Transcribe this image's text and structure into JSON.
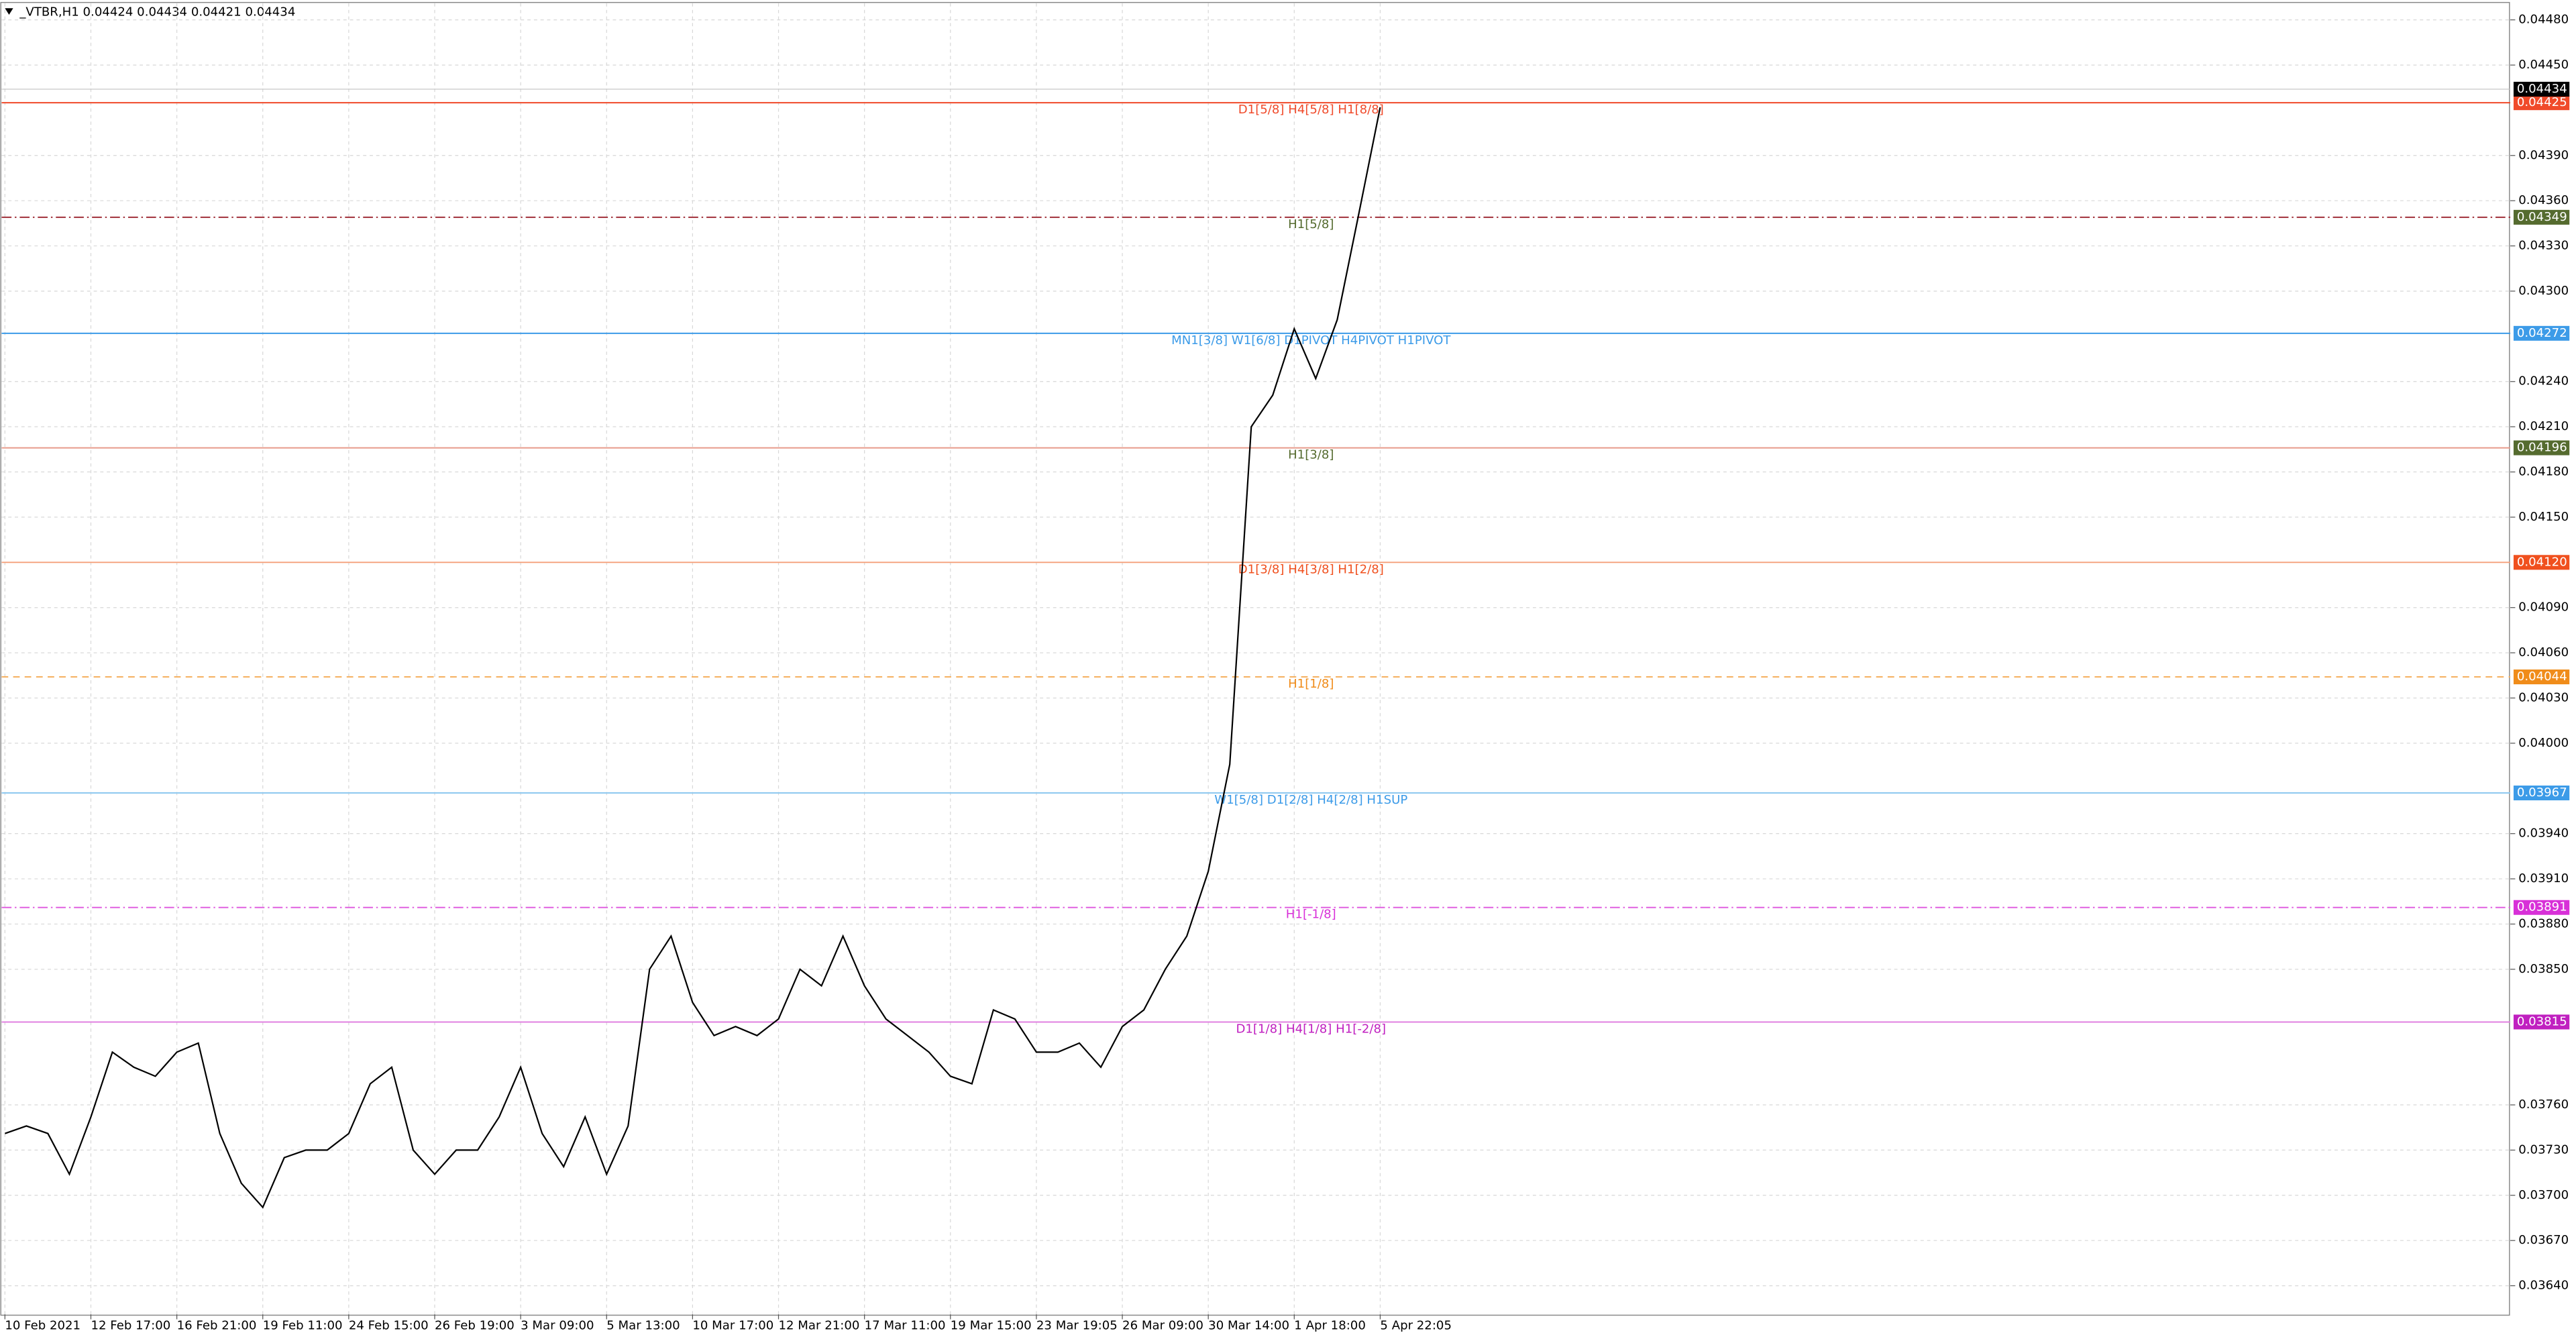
{
  "chart_data": {
    "type": "line",
    "title": "_VTBR,H1  0.04424 0.04434 0.04421 0.04434",
    "categories": [
      "10 Feb 2021",
      null,
      null,
      null,
      "12 Feb 17:00",
      null,
      null,
      null,
      "16 Feb 21:00",
      null,
      null,
      null,
      "19 Feb 11:00",
      null,
      null,
      null,
      "24 Feb 15:00",
      null,
      null,
      null,
      "26 Feb 19:00",
      null,
      null,
      null,
      "3 Mar 09:00",
      null,
      null,
      null,
      "5 Mar 13:00",
      null,
      null,
      null,
      "10 Mar 17:00",
      null,
      null,
      null,
      "12 Mar 21:00",
      null,
      null,
      null,
      "17 Mar 11:00",
      null,
      null,
      null,
      "19 Mar 15:00",
      null,
      null,
      null,
      "23 Mar 19:05",
      null,
      null,
      null,
      "26 Mar 09:00",
      null,
      null,
      null,
      "30 Mar 14:00",
      null,
      null,
      null,
      "1 Apr 18:00",
      null,
      null,
      null,
      "5 Apr 22:05"
    ],
    "series": [
      {
        "color": "#000000",
        "values": [
          0.03741,
          0.03746,
          0.03741,
          0.03714,
          0.03752,
          0.03795,
          0.03785,
          0.03779,
          0.03795,
          0.03801,
          0.03741,
          0.03708,
          0.03692,
          0.03725,
          0.0373,
          0.0373,
          0.03741,
          0.03774,
          0.03785,
          0.0373,
          0.03714,
          0.0373,
          0.0373,
          0.03752,
          0.03785,
          0.03741,
          0.03719,
          0.03752,
          0.03714,
          0.03746,
          0.0385,
          0.03872,
          0.03828,
          0.03806,
          0.03812,
          0.03806,
          0.03817,
          0.0385,
          0.03839,
          0.03872,
          0.03839,
          0.03817,
          0.03806,
          0.03795,
          0.03779,
          0.03774,
          0.03823,
          0.03817,
          0.03795,
          0.03795,
          0.03801,
          0.03785,
          0.03812,
          0.03823,
          0.0385,
          0.03872,
          0.03915,
          0.03986,
          0.0421,
          0.04231,
          0.04275,
          0.04242,
          0.04281,
          0.04351,
          0.04422
        ]
      }
    ],
    "ylim": [
      0.03621,
      0.04491
    ],
    "yticks": [
      {
        "value": 0.0448,
        "label": "0.04480"
      },
      {
        "value": 0.0445,
        "label": "0.04450"
      },
      {
        "value": 0.0439,
        "label": "0.04390"
      },
      {
        "value": 0.0436,
        "label": "0.04360"
      },
      {
        "value": 0.0433,
        "label": "0.04330"
      },
      {
        "value": 0.043,
        "label": "0.04300"
      },
      {
        "value": 0.0424,
        "label": "0.04240"
      },
      {
        "value": 0.0421,
        "label": "0.04210"
      },
      {
        "value": 0.0418,
        "label": "0.04180"
      },
      {
        "value": 0.0415,
        "label": "0.04150"
      },
      {
        "value": 0.0409,
        "label": "0.04090"
      },
      {
        "value": 0.0406,
        "label": "0.04060"
      },
      {
        "value": 0.0403,
        "label": "0.04030"
      },
      {
        "value": 0.04,
        "label": "0.04000"
      },
      {
        "value": 0.0394,
        "label": "0.03940"
      },
      {
        "value": 0.0391,
        "label": "0.03910"
      },
      {
        "value": 0.0388,
        "label": "0.03880"
      },
      {
        "value": 0.0385,
        "label": "0.03850"
      },
      {
        "value": 0.0376,
        "label": "0.03760"
      },
      {
        "value": 0.0373,
        "label": "0.03730"
      },
      {
        "value": 0.037,
        "label": "0.03700"
      },
      {
        "value": 0.0367,
        "label": "0.03670"
      },
      {
        "value": 0.0364,
        "label": "0.03640"
      }
    ],
    "grid": true,
    "last_price": {
      "value": 0.04434,
      "label": "0.04434",
      "color": "#000000"
    },
    "levels": [
      {
        "value": 0.04425,
        "label": "0.04425",
        "name": "D1[5/8] H4[5/8] H1[8/8]",
        "line_color": "#f04a2a",
        "color": "#f04a2a",
        "dash": "none"
      },
      {
        "value": 0.04349,
        "label": "0.04349",
        "name": "H1[5/8]",
        "line_color": "#a0303a",
        "color": "#556b2f",
        "dash": "6 2 1 2"
      },
      {
        "value": 0.04272,
        "label": "0.04272",
        "name": "MN1[3/8] W1[6/8] D1PIVOT H4PIVOT H1PIVOT",
        "line_color": "#3c9be8",
        "color": "#3c9be8",
        "dash": "none"
      },
      {
        "value": 0.04196,
        "label": "0.04196",
        "name": "H1[3/8]",
        "line_color": "#e89a8a",
        "color": "#556b2f",
        "dash": "none"
      },
      {
        "value": 0.0412,
        "label": "0.04120",
        "name": "D1[3/8] H4[3/8] H1[2/8]",
        "line_color": "#f5a07a",
        "color": "#f0501e",
        "dash": "none"
      },
      {
        "value": 0.04044,
        "label": "0.04044",
        "name": "H1[1/8]",
        "line_color": "#f5b060",
        "color": "#f08c1a",
        "dash": "4 3"
      },
      {
        "value": 0.03967,
        "label": "0.03967",
        "name": "W1[5/8] D1[2/8] H4[2/8] H1SUP",
        "line_color": "#8ec8f0",
        "color": "#3c9be8",
        "dash": "none"
      },
      {
        "value": 0.03891,
        "label": "0.03891",
        "name": "H1[-1/8]",
        "line_color": "#e060e0",
        "color": "#d830d8",
        "dash": "6 2 1 2"
      },
      {
        "value": 0.03815,
        "label": "0.03815",
        "name": "D1[1/8] H4[1/8] H1[-2/8]",
        "line_color": "#e080e0",
        "color": "#c020c0",
        "dash": "none"
      }
    ]
  }
}
